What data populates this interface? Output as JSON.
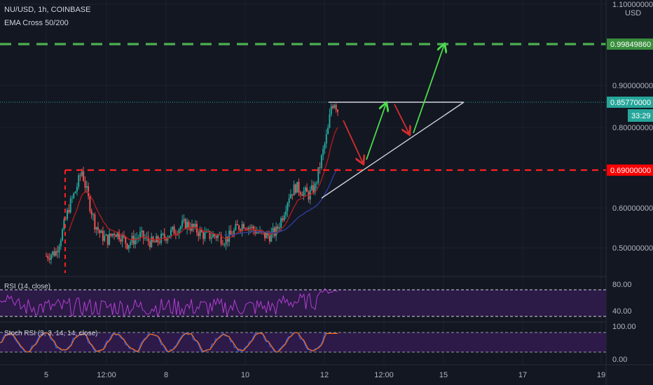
{
  "header": {
    "symbol": "NU/USD, 1h, COINBASE",
    "indicator": "EMA Cross 50/200"
  },
  "colors": {
    "background": "#131722",
    "up": "#26a69a",
    "down": "#ef5350",
    "grid": "#1e222d",
    "resistance": "#4caf50",
    "support": "#ff1e1e",
    "rsi": "#9c27b0",
    "stoch_k": "#2962ff",
    "stoch_d": "#ff6d00",
    "panel_fill": "#311b4e"
  },
  "price_axis": {
    "currency": "USD",
    "ticks": [
      "1.10000000",
      "0.90000000",
      "0.80000000",
      "0.60000000",
      "0.50000000"
    ],
    "current_price": "0.85770000",
    "countdown": "33:29",
    "target_label": "0.99849860",
    "support_label": "0.69000000"
  },
  "time_axis": {
    "ticks": [
      "5",
      "12:00",
      "8",
      "10",
      "12",
      "12:00",
      "15",
      "17",
      "19"
    ]
  },
  "rsi": {
    "label": "RSI (14, close)",
    "ticks": [
      "80.00",
      "40.00"
    ]
  },
  "stoch": {
    "label": "Stoch RSI (3, 3, 14, 14, close)",
    "ticks": [
      "100.00",
      "0.00"
    ]
  },
  "chart_data": {
    "type": "candlestick",
    "symbol": "NU/USD",
    "timeframe": "1h",
    "exchange": "COINBASE",
    "ylim": [
      0.46,
      1.1
    ],
    "resistance_level": 0.9985,
    "support_level": 0.69,
    "current_price": 0.8577,
    "moving_averages": [
      "EMA 50",
      "EMA 200"
    ],
    "approx_close_path": [
      {
        "x": "5",
        "close": 0.49
      },
      {
        "x": "5",
        "close": 0.69
      },
      {
        "x": "12:00",
        "close": 0.53
      },
      {
        "x": "8",
        "close": 0.53
      },
      {
        "x": "10",
        "close": 0.54
      },
      {
        "x": "12",
        "close": 0.7
      },
      {
        "x": "12",
        "close": 0.84
      }
    ],
    "triangle": {
      "apex_price": 0.8577,
      "upper_line": 0.8577,
      "lower_start": 0.625
    }
  }
}
